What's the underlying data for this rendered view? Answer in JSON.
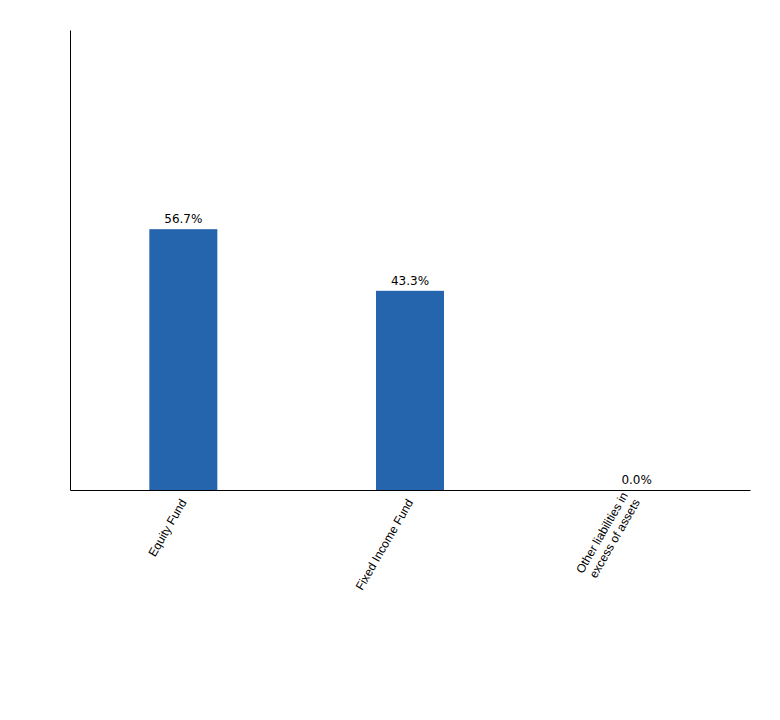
{
  "chart_data": {
    "type": "bar",
    "categories": [
      "Equity Fund",
      "Fixed Income Fund",
      "Other liabilities in\nexcess of assets"
    ],
    "values": [
      56.7,
      43.3,
      0.0
    ],
    "value_labels": [
      "56.7%",
      "43.3%",
      "0.0%"
    ],
    "data_labels": true,
    "color": "#2565AE",
    "ylim": [
      0,
      100
    ],
    "tick_labels": "x"
  }
}
